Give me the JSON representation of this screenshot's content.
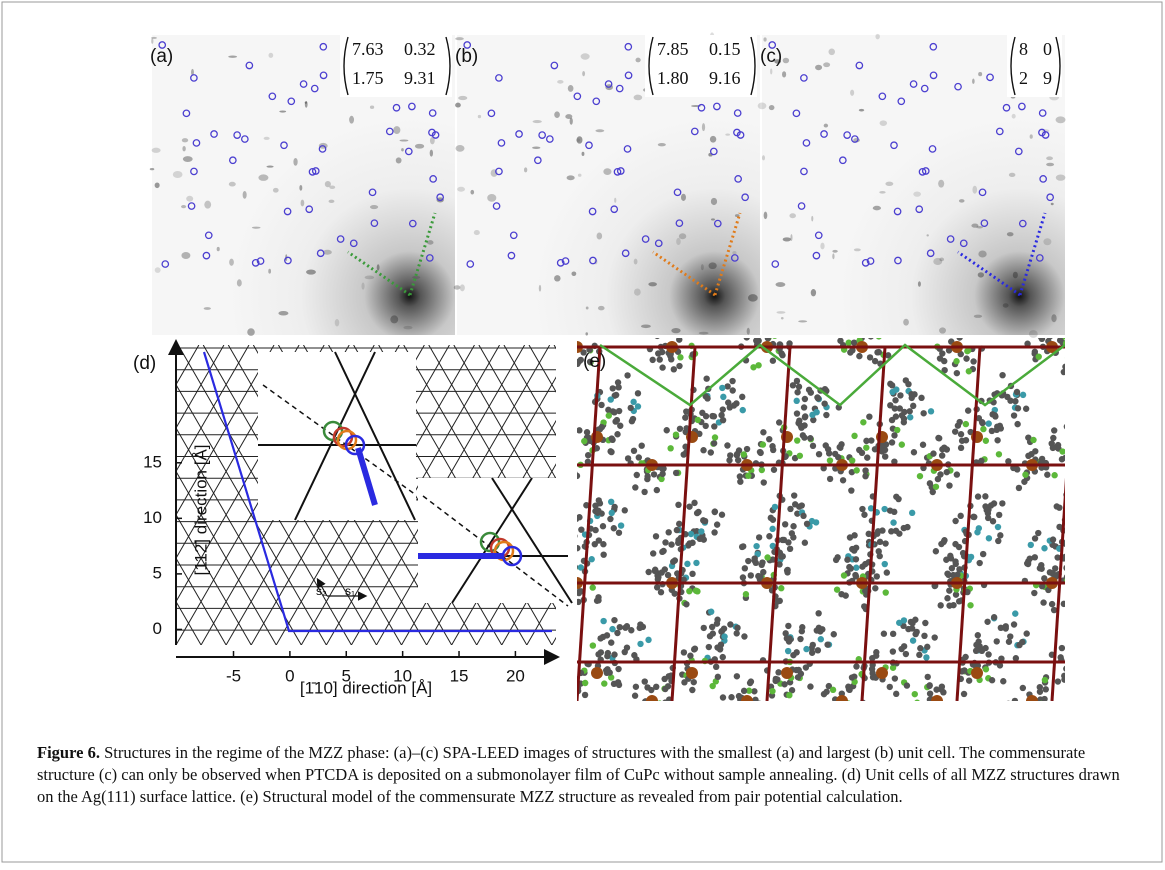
{
  "panels": {
    "a": {
      "label": "(a)",
      "matrix": [
        "7.63",
        "0.32",
        "1.75",
        "9.31"
      ]
    },
    "b": {
      "label": "(b)",
      "matrix": [
        "7.85",
        "0.15",
        "1.80",
        "9.16"
      ]
    },
    "c": {
      "label": "(c)",
      "matrix": [
        "8",
        "0",
        "2",
        "9"
      ]
    },
    "d": {
      "label": "(d)",
      "inset_labels": [
        "s₂",
        "s₁"
      ],
      "chart_data": {
        "type": "line",
        "xlabel": "[1̄10] direction [Å]",
        "ylabel": "[112̄] direction [Å]",
        "xlim": [
          -10.1,
          23.6
        ],
        "ylim": [
          -1.4,
          25.6
        ],
        "xticks": [
          -5,
          0,
          5,
          10,
          15,
          20
        ],
        "yticks": [
          0,
          5,
          10,
          15
        ]
      }
    },
    "e": {
      "label": "(e)"
    }
  },
  "caption": {
    "label": "Figure 6.",
    "text": "Structures in the regime of the MZZ phase: (a)–(c) SPA-LEED images of structures with the smallest (a) and largest (b) unit cell. The commensurate structure (c) can only be observed when PTCDA is deposited on a submonolayer film of CuPc without sample annealing. (d) Unit cells of all MZZ structures drawn on the Ag(111) surface lattice. (e) Structural model of the commensurate MZZ structure as revealed from pair potential calculation."
  }
}
